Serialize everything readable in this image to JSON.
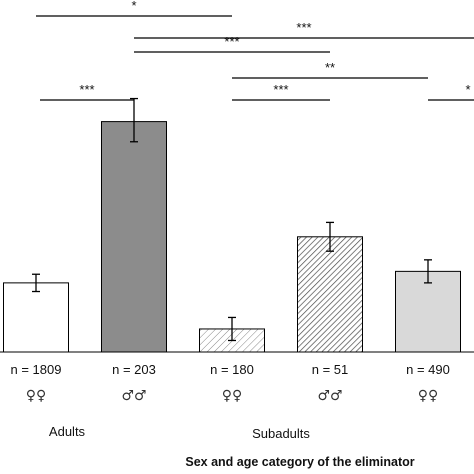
{
  "chart_data": {
    "type": "bar",
    "title": "",
    "xlabel": "Sex and age category of the eliminator",
    "ylabel": "",
    "ylim": [
      0,
      100
    ],
    "grid": false,
    "bars": [
      {
        "n_label": "n = 1809",
        "sex_symbol": "♀♀",
        "value": 24,
        "err_low": 21,
        "err_high": 27,
        "fill": "#ffffff",
        "pattern": "none"
      },
      {
        "n_label": "n = 203",
        "sex_symbol": "♂♂",
        "value": 80,
        "err_low": 73,
        "err_high": 88,
        "fill": "#8c8c8c",
        "pattern": "none"
      },
      {
        "n_label": "n = 180",
        "sex_symbol": "♀♀",
        "value": 8,
        "err_low": 4,
        "err_high": 12,
        "fill": "#ffffff",
        "pattern": "hatch-light"
      },
      {
        "n_label": "n = 51",
        "sex_symbol": "♂♂",
        "value": 40,
        "err_low": 35,
        "err_high": 45,
        "fill": "#ffffff",
        "pattern": "hatch-dense"
      },
      {
        "n_label": "n = 490",
        "sex_symbol": "♀♀",
        "value": 28,
        "err_low": 24,
        "err_high": 32,
        "fill": "#d9d9d9",
        "pattern": "none"
      }
    ],
    "groups": [
      {
        "label": "Adults",
        "bars": [
          0,
          1
        ]
      },
      {
        "label": "Subadults",
        "bars": [
          2,
          3
        ]
      }
    ],
    "significance": [
      {
        "from": 0,
        "to": 1,
        "label": "***"
      },
      {
        "from": 0,
        "to": 2,
        "label": "*"
      },
      {
        "from": 1,
        "to": 5,
        "label": "***"
      },
      {
        "from": 1,
        "to": 3,
        "label": "***"
      },
      {
        "from": 2,
        "to": 4,
        "label": "**"
      },
      {
        "from": 2,
        "to": 3,
        "label": "***"
      },
      {
        "from": 4,
        "to": 5,
        "label": "*"
      }
    ]
  },
  "colors": {
    "axis": "#000000",
    "text": "#111111",
    "errorbar": "#000000"
  }
}
